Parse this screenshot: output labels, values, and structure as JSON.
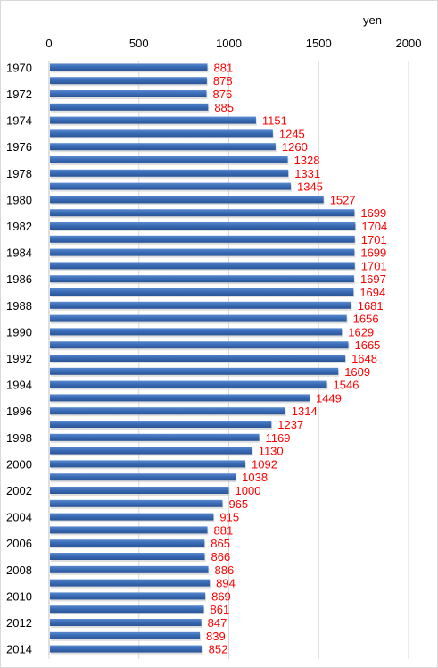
{
  "chart_data": {
    "type": "bar",
    "orientation": "horizontal",
    "unit_label": "yen",
    "xlim": [
      0,
      2000
    ],
    "x_ticks": [
      0,
      500,
      1000,
      1500,
      2000
    ],
    "x_axis_position": "top",
    "grid": true,
    "legend": "none",
    "categories": [
      "1970",
      "1971",
      "1972",
      "1973",
      "1974",
      "1975",
      "1976",
      "1977",
      "1978",
      "1979",
      "1980",
      "1981",
      "1982",
      "1983",
      "1984",
      "1985",
      "1986",
      "1987",
      "1988",
      "1989",
      "1990",
      "1991",
      "1992",
      "1993",
      "1994",
      "1995",
      "1996",
      "1997",
      "1998",
      "1999",
      "2000",
      "2001",
      "2002",
      "2003",
      "2004",
      "2005",
      "2006",
      "2007",
      "2008",
      "2009",
      "2010",
      "2011",
      "2012",
      "2013",
      "2014"
    ],
    "category_labels_shown": [
      "1970",
      "",
      "1972",
      "",
      "1974",
      "",
      "1976",
      "",
      "1978",
      "",
      "1980",
      "",
      "1982",
      "",
      "1984",
      "",
      "1986",
      "",
      "1988",
      "",
      "1990",
      "",
      "1992",
      "",
      "1994",
      "",
      "1996",
      "",
      "1998",
      "",
      "2000",
      "",
      "2002",
      "",
      "2004",
      "",
      "2006",
      "",
      "2008",
      "",
      "2010",
      "",
      "2012",
      "",
      "2014"
    ],
    "values": [
      881,
      878,
      876,
      885,
      1151,
      1245,
      1260,
      1328,
      1331,
      1345,
      1527,
      1699,
      1704,
      1701,
      1699,
      1701,
      1697,
      1694,
      1681,
      1656,
      1629,
      1665,
      1648,
      1609,
      1546,
      1449,
      1314,
      1237,
      1169,
      1130,
      1092,
      1038,
      1000,
      965,
      915,
      881,
      865,
      866,
      886,
      894,
      869,
      861,
      847,
      839,
      852
    ],
    "bar_color": "#3a6cb5",
    "label_color": "#ff0000"
  }
}
